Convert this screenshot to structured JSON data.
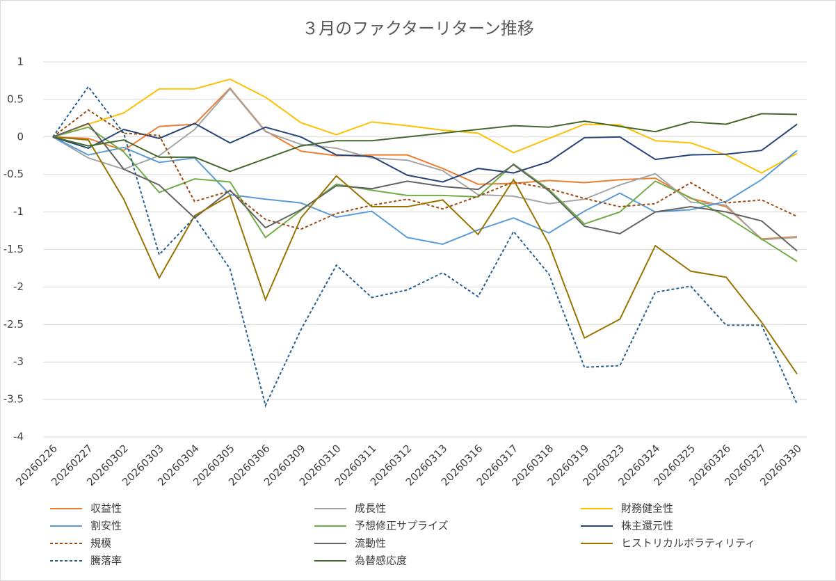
{
  "chart_data": {
    "type": "line",
    "title": "３月のファクターリターン推移",
    "categories": [
      "20260226",
      "20260227",
      "20260302",
      "20260303",
      "20260304",
      "20260305",
      "20260306",
      "20260309",
      "20260310",
      "20260311",
      "20260312",
      "20260313",
      "20260316",
      "20260317",
      "20260318",
      "20260319",
      "20260323",
      "20260324",
      "20260325",
      "20260326",
      "20260327",
      "20260330"
    ],
    "ylim": [
      -4,
      1
    ],
    "yticks": [
      1,
      0.5,
      0,
      -0.5,
      -1,
      -1.5,
      -2,
      -2.5,
      -3,
      -3.5,
      -4
    ],
    "grid": true,
    "series": [
      {
        "name": "収益性",
        "color": "#ed7d31",
        "dash": "solid",
        "values": [
          0,
          -0.02,
          -0.18,
          0.14,
          0.17,
          0.65,
          0.08,
          -0.19,
          -0.25,
          -0.24,
          -0.24,
          -0.42,
          -0.63,
          -0.62,
          -0.58,
          -0.61,
          -0.57,
          -0.55,
          -0.82,
          -0.93,
          -1.36,
          -1.33
        ]
      },
      {
        "name": "成長性",
        "color": "#a5a5a5",
        "dash": "solid",
        "values": [
          0,
          -0.28,
          -0.43,
          -0.25,
          0.1,
          0.64,
          0.07,
          -0.1,
          -0.15,
          -0.28,
          -0.31,
          -0.45,
          -0.77,
          -0.79,
          -0.89,
          -0.83,
          -0.64,
          -0.49,
          -0.87,
          -0.91,
          -1.37,
          -1.34
        ]
      },
      {
        "name": "財務健全性",
        "color": "#ffc000",
        "dash": "solid",
        "values": [
          0,
          0.17,
          0.32,
          0.64,
          0.64,
          0.77,
          0.53,
          0.19,
          0.03,
          0.2,
          0.15,
          0.09,
          0.05,
          -0.21,
          -0.02,
          0.17,
          0.16,
          -0.05,
          -0.08,
          -0.24,
          -0.48,
          -0.22
        ]
      },
      {
        "name": "割安性",
        "color": "#5b9bd5",
        "dash": "solid",
        "values": [
          0,
          -0.24,
          -0.14,
          -0.34,
          -0.28,
          -0.77,
          -0.83,
          -0.88,
          -1.07,
          -0.99,
          -1.34,
          -1.43,
          -1.24,
          -1.08,
          -1.28,
          -0.99,
          -0.75,
          -1.0,
          -0.97,
          -0.86,
          -0.57,
          -0.18
        ]
      },
      {
        "name": "予想修正サプライズ",
        "color": "#70ad47",
        "dash": "solid",
        "values": [
          0,
          0.13,
          -0.2,
          -0.74,
          -0.56,
          -0.6,
          -1.34,
          -0.98,
          -0.63,
          -0.71,
          -0.78,
          -0.78,
          -0.8,
          -0.36,
          -0.7,
          -1.16,
          -1.0,
          -0.59,
          -0.81,
          -1.06,
          -1.36,
          -1.66
        ]
      },
      {
        "name": "株主還元性",
        "color": "#264478",
        "dash": "solid",
        "values": [
          0,
          -0.15,
          0.1,
          -0.02,
          0.18,
          -0.08,
          0.13,
          0.0,
          -0.24,
          -0.26,
          -0.51,
          -0.6,
          -0.42,
          -0.48,
          -0.33,
          -0.01,
          0.0,
          -0.3,
          -0.24,
          -0.23,
          -0.18,
          0.17
        ]
      },
      {
        "name": "規模",
        "color": "#9e480e",
        "dash": "dashed",
        "values": [
          0,
          0.36,
          0.05,
          0.02,
          -0.86,
          -0.72,
          -1.1,
          -1.23,
          -1.02,
          -0.91,
          -0.83,
          -0.96,
          -0.79,
          -0.6,
          -0.69,
          -0.82,
          -0.93,
          -0.89,
          -0.61,
          -0.88,
          -0.84,
          -1.06
        ]
      },
      {
        "name": "流動性",
        "color": "#636363",
        "dash": "solid",
        "values": [
          0,
          0.18,
          -0.43,
          -0.64,
          -1.08,
          -0.71,
          -1.21,
          -0.97,
          -0.65,
          -0.69,
          -0.59,
          -0.66,
          -0.7,
          -0.37,
          -0.72,
          -1.19,
          -1.29,
          -1.0,
          -0.93,
          -1.0,
          -1.12,
          -1.52
        ]
      },
      {
        "name": "ヒストリカルボラティリティ",
        "color": "#997300",
        "dash": "solid",
        "values": [
          0,
          -0.04,
          -0.83,
          -1.88,
          -1.05,
          -0.78,
          -2.17,
          -1.08,
          -0.52,
          -0.93,
          -0.93,
          -0.84,
          -1.3,
          -0.57,
          -1.43,
          -2.68,
          -2.43,
          -1.45,
          -1.79,
          -1.87,
          -2.47,
          -3.16
        ]
      },
      {
        "name": "騰落率",
        "color": "#255e91",
        "dash": "dashed",
        "values": [
          0,
          0.67,
          0.05,
          -1.57,
          -1.07,
          -1.76,
          -3.58,
          -2.57,
          -1.71,
          -2.14,
          -2.04,
          -1.81,
          -2.13,
          -1.26,
          -1.83,
          -3.07,
          -3.05,
          -2.07,
          -1.99,
          -2.51,
          -2.51,
          -3.56
        ]
      },
      {
        "name": "為替感応度",
        "color": "#43682b",
        "dash": "solid",
        "values": [
          0,
          -0.12,
          -0.04,
          -0.27,
          -0.27,
          -0.46,
          -0.29,
          -0.12,
          -0.05,
          -0.05,
          0.0,
          0.05,
          0.1,
          0.15,
          0.13,
          0.21,
          0.14,
          0.07,
          0.2,
          0.17,
          0.31,
          0.3
        ]
      }
    ]
  }
}
